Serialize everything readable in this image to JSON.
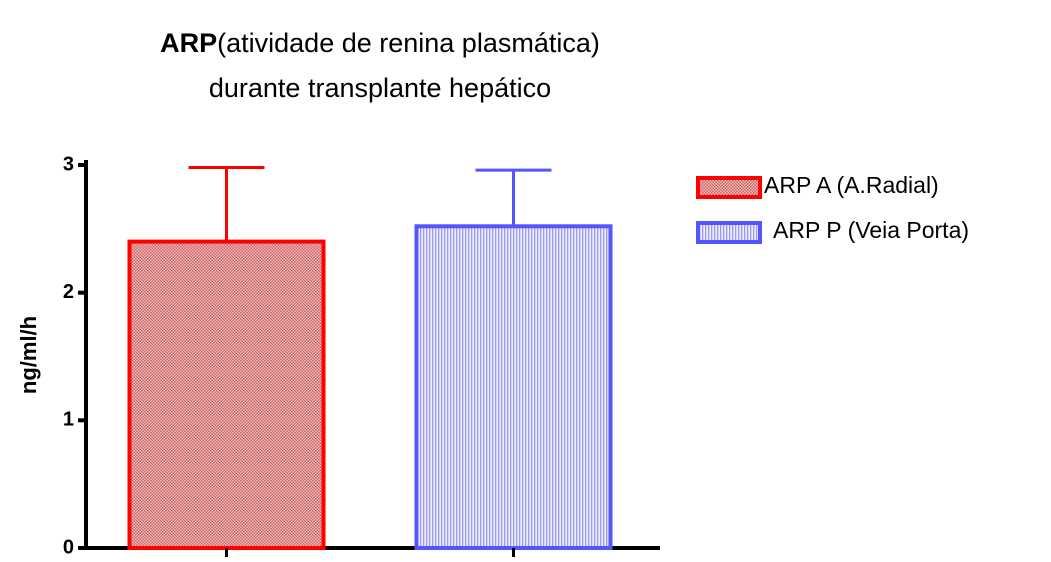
{
  "chart_data": {
    "type": "bar",
    "title": [
      "ARP",
      "(atividade de renina plasmática)",
      "durante transplante hepático"
    ],
    "ylabel": "ng/ml/h",
    "series": [
      {
        "name": "ARP A (A.Radial)",
        "color": "#ff0000",
        "values": [
          2.4
        ],
        "errors": [
          0.58
        ]
      },
      {
        "name": "ARP P (Veia Porta)",
        "color": "#5555ff",
        "values": [
          2.52
        ],
        "errors": [
          0.44
        ]
      }
    ],
    "ylim": [
      0,
      3
    ],
    "yticks": [
      0,
      1,
      2,
      3
    ],
    "legend": "right"
  }
}
